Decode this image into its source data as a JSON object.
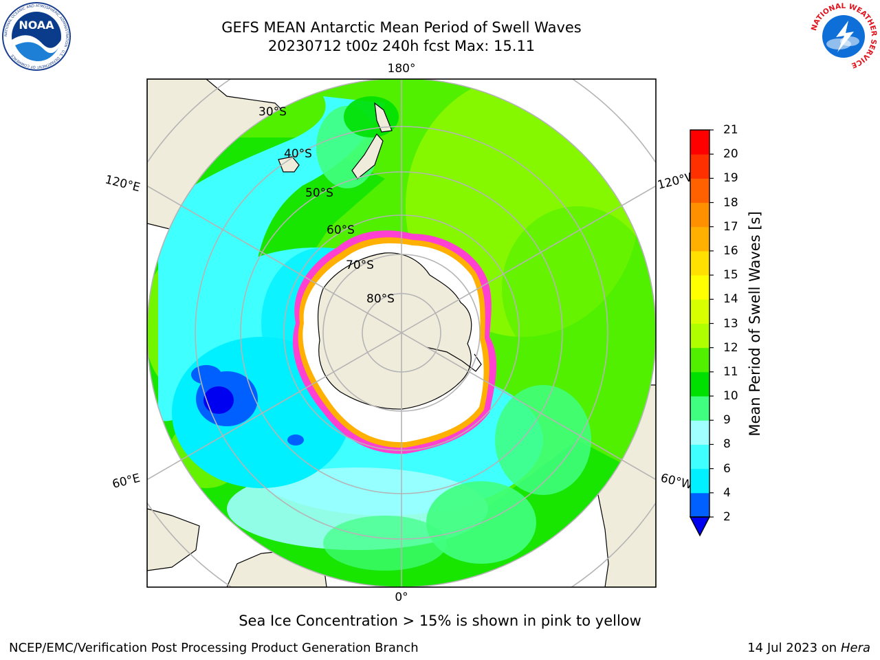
{
  "header": {
    "title_line1": "GEFS MEAN Antarctic Mean Period of Swell Waves",
    "title_line2": "20230712 t00z 240h fcst   Max: 15.11"
  },
  "logos": {
    "left": {
      "name": "noaa-logo",
      "text": "NOAA",
      "ring_text": "NATIONAL OCEANIC AND ATMOSPHERIC ADMINISTRATION · U.S. DEPARTMENT OF COMMERCE"
    },
    "right": {
      "name": "nws-logo",
      "ring_text": "NATIONAL WEATHER SERVICE"
    }
  },
  "map": {
    "projection": "South polar stereographic",
    "latitude_labels": [
      "30°S",
      "40°S",
      "50°S",
      "60°S",
      "70°S",
      "80°S"
    ],
    "longitude_labels": {
      "top": "180°",
      "upper_left": "120°E",
      "upper_right": "120°W",
      "lower_left": "60°E",
      "lower_right": "60°W",
      "bottom": "0°"
    },
    "colors": {
      "land": "#efecdc",
      "sea_ice": "#ffffff",
      "gridlines": "#b4b4b4",
      "ice_edge_pink": "#ff40d0"
    }
  },
  "colorbar": {
    "label": "Mean Period of Swell Waves [s]",
    "ticks": [
      "2",
      "4",
      "6",
      "8",
      "9",
      "10",
      "11",
      "12",
      "13",
      "14",
      "15",
      "16",
      "17",
      "18",
      "19",
      "20",
      "21"
    ],
    "colors": [
      "#0060ff",
      "#00f0ff",
      "#40ffff",
      "#a0ffff",
      "#40ff80",
      "#00e000",
      "#50f000",
      "#b0ff00",
      "#d8ff00",
      "#ffff00",
      "#ffe000",
      "#ffb000",
      "#ff9000",
      "#ff6000",
      "#ff3000",
      "#ff0000"
    ],
    "extend_min_color": "#0000f0"
  },
  "caption": "Sea Ice Concentration > 15% is shown in pink to yellow",
  "footer": {
    "left": "NCEP/EMC/Verification Post Processing Product Generation Branch",
    "right_date": "14 Jul 2023 on ",
    "right_host": "Hera"
  }
}
